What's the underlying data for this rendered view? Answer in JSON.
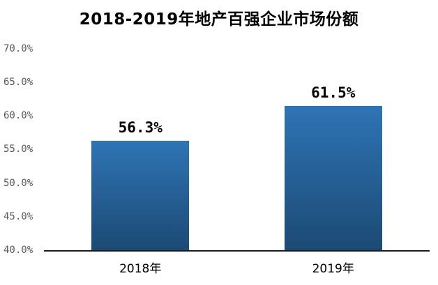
{
  "chart_data": {
    "type": "bar",
    "title": "2018-2019年地产百强企业市场份额",
    "categories": [
      "2018年",
      "2019年"
    ],
    "values": [
      56.3,
      61.5
    ],
    "value_labels": [
      "56.3%",
      "61.5%"
    ],
    "xlabel": "",
    "ylabel": "",
    "ylim": [
      40.0,
      70.0
    ],
    "ytick_step": 5.0,
    "ytick_labels_top_to_bottom": [
      "70.0%",
      "65.0%",
      "60.0%",
      "55.0%",
      "50.0%",
      "45.0%",
      "40.0%"
    ],
    "grid": false,
    "legend": false,
    "legend_position": "none",
    "colors": {
      "bar_gradient_top": "#2E74B5",
      "bar_gradient_bottom": "#1C4A74",
      "axis_line": "#1A1A1A",
      "ytick_label": "#595959",
      "text": "#000000",
      "background": "#FFFFFF"
    }
  }
}
